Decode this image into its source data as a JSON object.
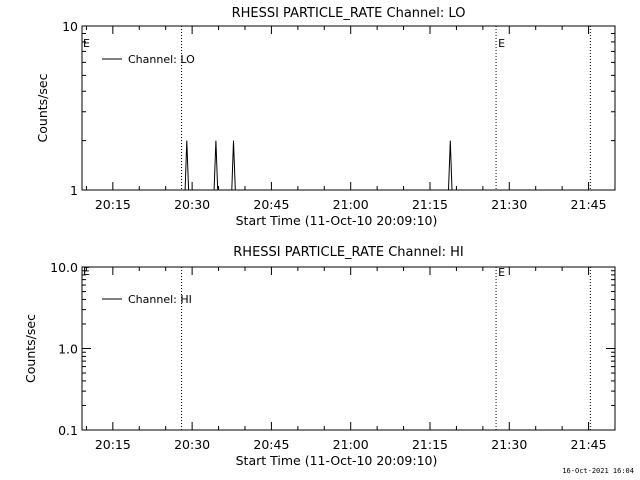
{
  "chart_data": [
    {
      "type": "line",
      "title": "RHESSI PARTICLE_RATE Channel: LO",
      "xlabel": "Start Time (11-Oct-10 20:09:10)",
      "ylabel": "Counts/sec",
      "yscale": "log",
      "ylim": [
        1,
        10
      ],
      "xlim": [
        "20:09:10",
        "21:50:00"
      ],
      "x_ticks": [
        "20:15",
        "20:30",
        "20:45",
        "21:00",
        "21:15",
        "21:30",
        "21:45"
      ],
      "y_ticks": [
        "1",
        "10"
      ],
      "legend": {
        "position": "top-left",
        "entries": [
          "Channel: LO"
        ]
      },
      "event_lines": [
        {
          "time": "20:28:00",
          "label": ""
        },
        {
          "time": "21:27:30",
          "label": "E"
        },
        {
          "time": "21:45:20",
          "label": ""
        }
      ],
      "left_marker": "E",
      "series": [
        {
          "name": "Channel: LO",
          "points": [
            [
              "20:09:10",
              1
            ],
            [
              "20:28:40",
              1
            ],
            [
              "20:29:00",
              2
            ],
            [
              "20:29:20",
              1
            ],
            [
              "20:34:10",
              1
            ],
            [
              "20:34:30",
              2
            ],
            [
              "20:34:50",
              1
            ],
            [
              "20:37:30",
              1
            ],
            [
              "20:37:50",
              2
            ],
            [
              "20:38:10",
              1
            ],
            [
              "21:18:30",
              1
            ],
            [
              "21:18:50",
              2
            ],
            [
              "21:19:10",
              1
            ],
            [
              "21:50:00",
              1
            ]
          ]
        }
      ]
    },
    {
      "type": "line",
      "title": "RHESSI PARTICLE_RATE Channel: HI",
      "xlabel": "Start Time (11-Oct-10 20:09:10)",
      "ylabel": "Counts/sec",
      "yscale": "log",
      "ylim": [
        0.1,
        10
      ],
      "xlim": [
        "20:09:10",
        "21:50:00"
      ],
      "x_ticks": [
        "20:15",
        "20:30",
        "20:45",
        "21:00",
        "21:15",
        "21:30",
        "21:45"
      ],
      "y_ticks": [
        "0.1",
        "1.0",
        "10.0"
      ],
      "legend": {
        "position": "top-left",
        "entries": [
          "Channel: HI"
        ]
      },
      "event_lines": [
        {
          "time": "20:28:00",
          "label": ""
        },
        {
          "time": "21:27:30",
          "label": "E"
        },
        {
          "time": "21:45:20",
          "label": ""
        }
      ],
      "left_marker": "E",
      "series": [
        {
          "name": "Channel: HI",
          "points": []
        }
      ]
    }
  ],
  "footer": {
    "timestamp": "16-Oct-2021 16:04"
  }
}
